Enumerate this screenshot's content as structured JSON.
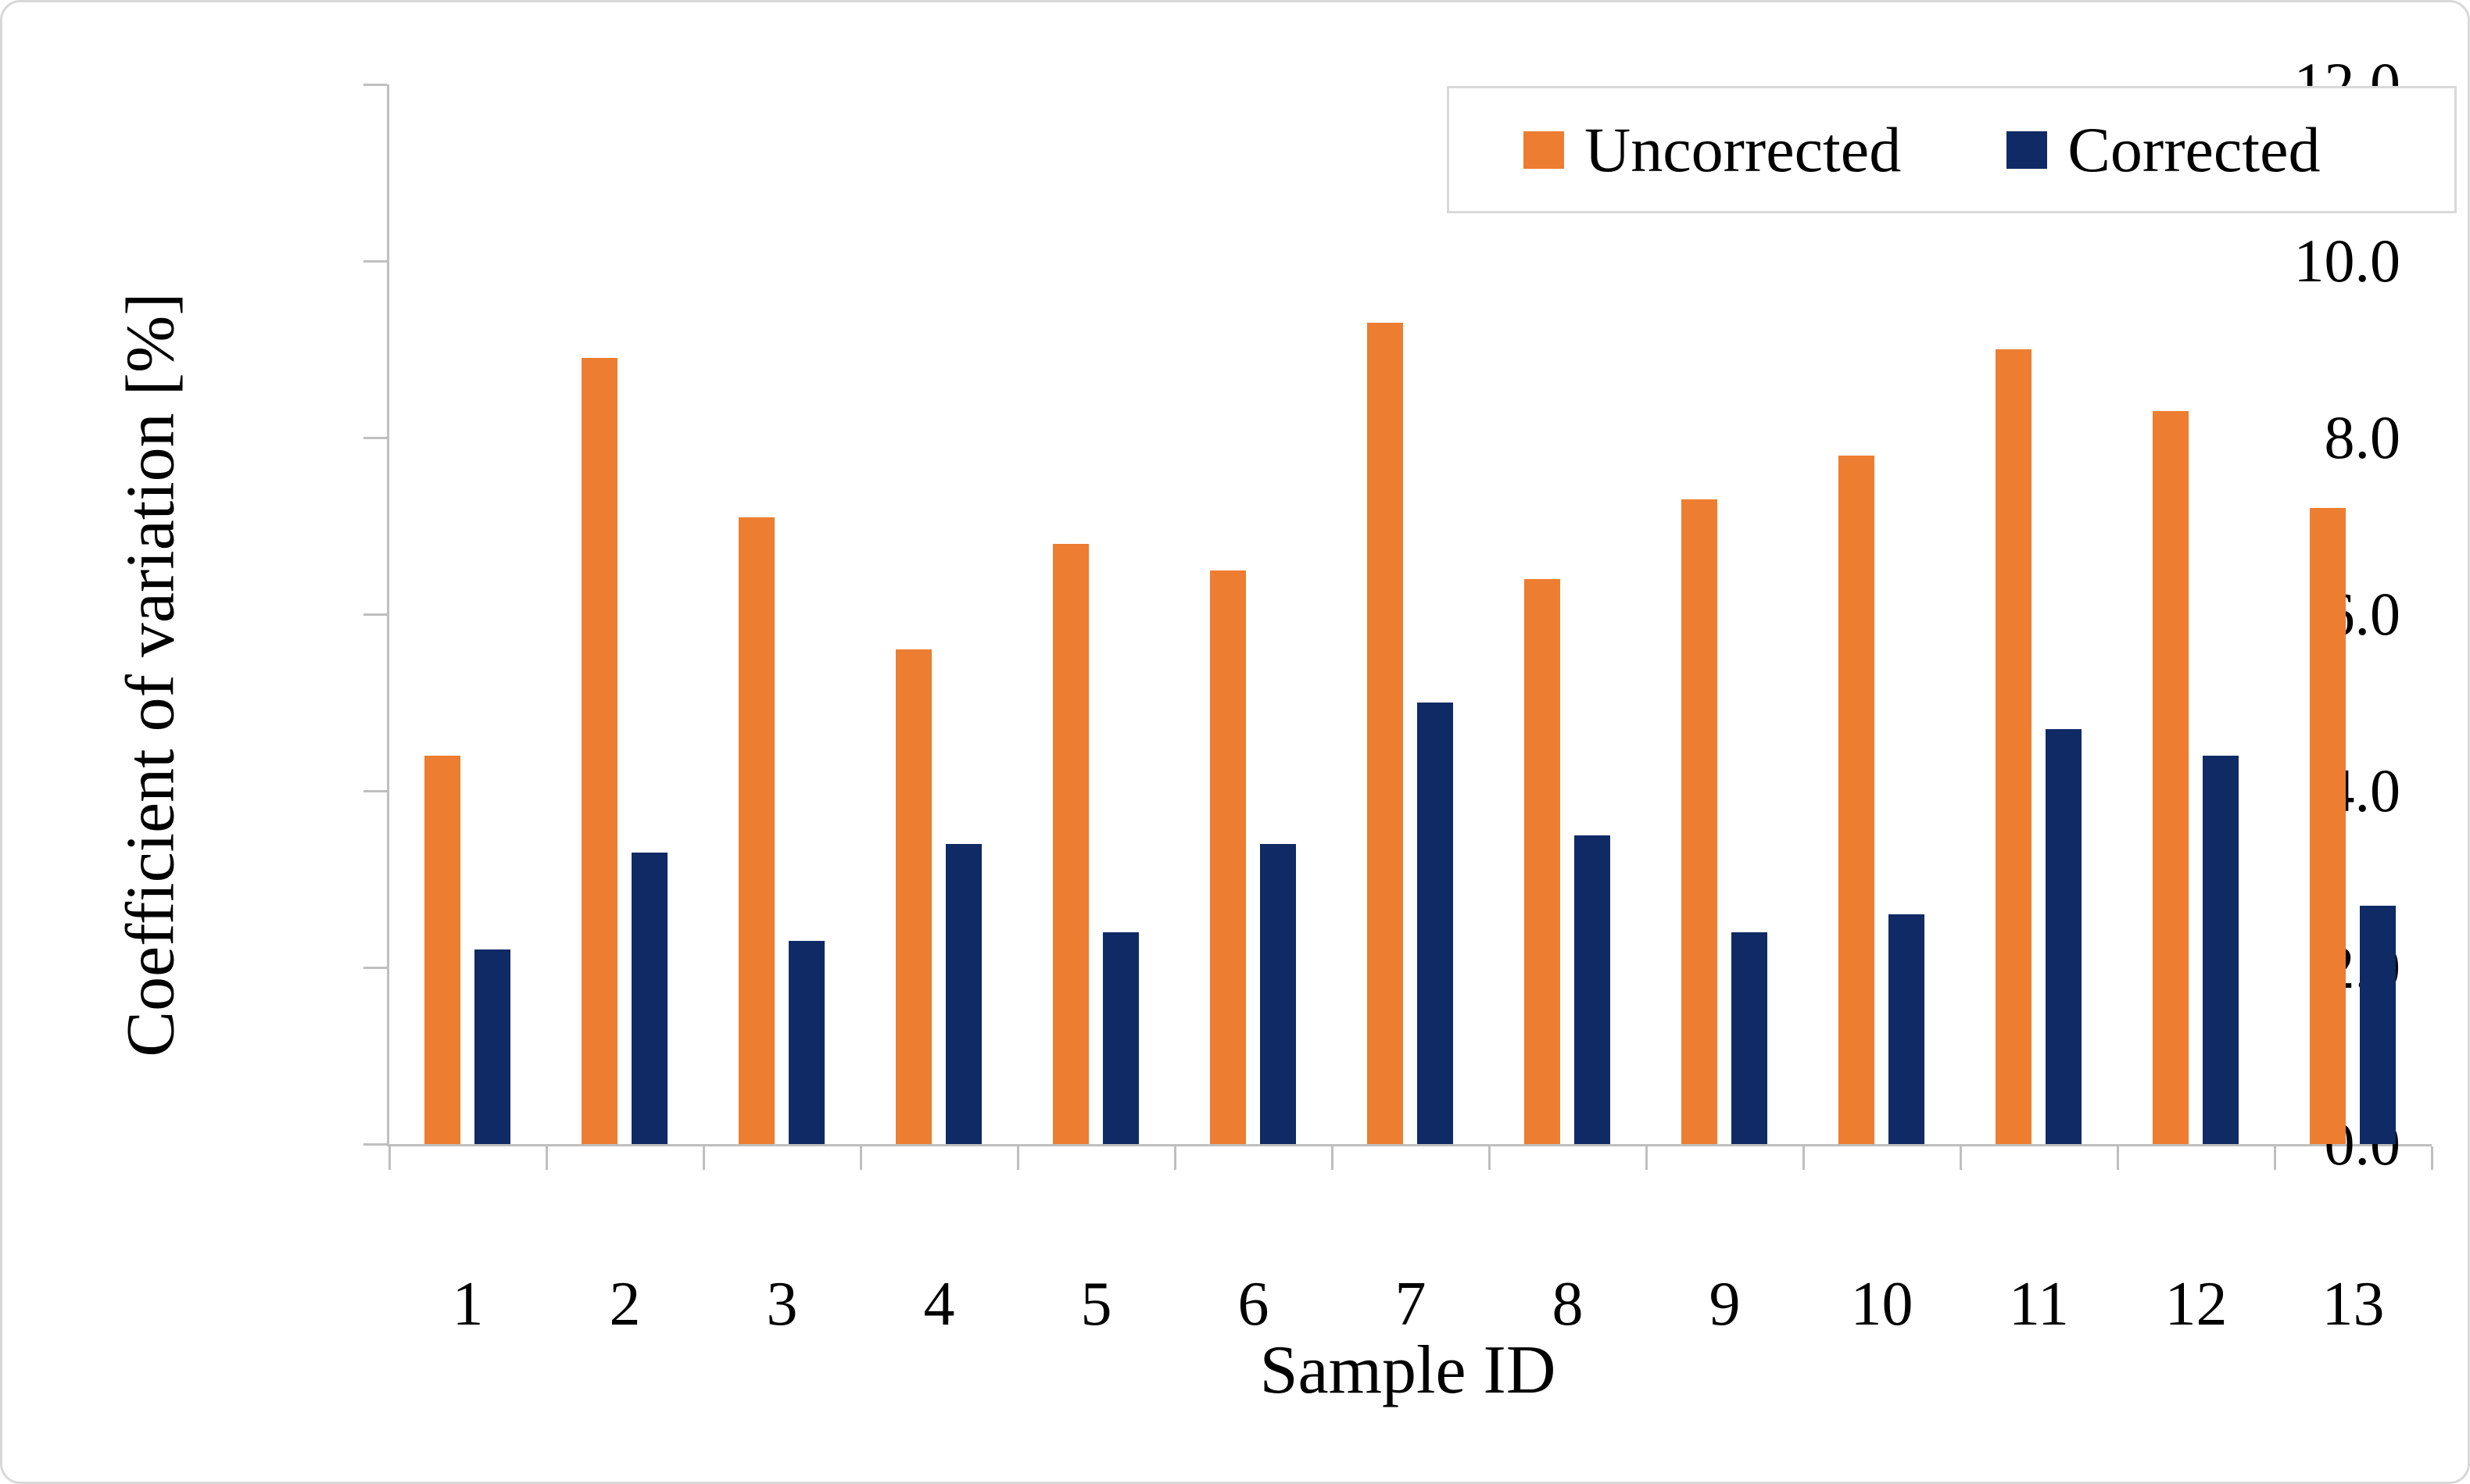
{
  "page": {
    "background": "#ffffff",
    "border_color": "#d8d8d8",
    "axis_color": "#bfbfbf"
  },
  "chart_data": {
    "type": "bar",
    "title": "",
    "xlabel": "Sample ID",
    "ylabel": "Coefficient of variation [%]",
    "categories": [
      "1",
      "2",
      "3",
      "4",
      "5",
      "6",
      "7",
      "8",
      "9",
      "10",
      "11",
      "12",
      "13"
    ],
    "series": [
      {
        "name": "Uncorrected",
        "color": "#ED7D31",
        "values": [
          4.4,
          8.9,
          7.1,
          5.6,
          6.8,
          6.5,
          9.3,
          6.4,
          7.3,
          7.8,
          9.0,
          8.3,
          7.2
        ]
      },
      {
        "name": "Corrected",
        "color": "#0F2A64",
        "values": [
          2.2,
          3.3,
          2.3,
          3.4,
          2.4,
          3.4,
          5.0,
          3.5,
          2.4,
          2.6,
          4.7,
          4.4,
          2.7
        ]
      }
    ],
    "ylim": [
      0,
      12
    ],
    "ytick_step": 2.0,
    "ytick_labels": [
      "0.0",
      "2.0",
      "4.0",
      "6.0",
      "8.0",
      "10.0",
      "12.0"
    ],
    "grid": false,
    "legend_position": "top-right"
  }
}
